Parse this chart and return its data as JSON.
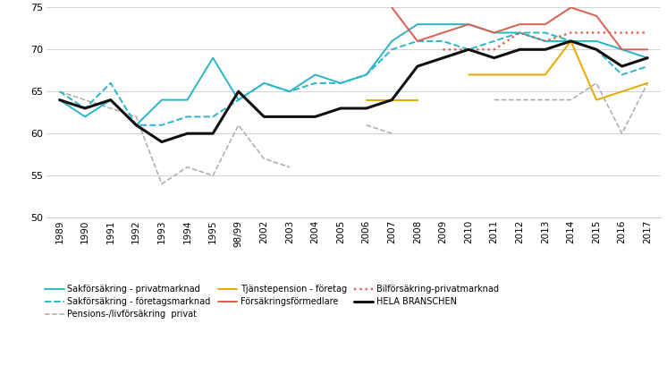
{
  "x_labels": [
    "1989",
    "1990",
    "1991",
    "1992",
    "1993",
    "1994",
    "1995",
    "98/99",
    "2002",
    "2003",
    "2004",
    "2005",
    "2006",
    "2007",
    "2008",
    "2009",
    "2010",
    "2011",
    "2012",
    "2013",
    "2014",
    "2015",
    "2016",
    "2017"
  ],
  "sakfor_privat": [
    64,
    62,
    64,
    61,
    64,
    64,
    69,
    64,
    66,
    65,
    67,
    66,
    67,
    71,
    73,
    73,
    73,
    72,
    72,
    71,
    71,
    71,
    70,
    69
  ],
  "sakfor_foretag": [
    65,
    63,
    66,
    61,
    61,
    62,
    62,
    64,
    66,
    65,
    66,
    66,
    67,
    70,
    71,
    71,
    70,
    71,
    72,
    72,
    71,
    70,
    67,
    68
  ],
  "pensions_liv": [
    65,
    64,
    63,
    62,
    54,
    56,
    55,
    61,
    57,
    56,
    null,
    null,
    61,
    60,
    null,
    null,
    null,
    64,
    64,
    64,
    64,
    66,
    60,
    66
  ],
  "tjanstepension": [
    null,
    null,
    null,
    null,
    null,
    null,
    null,
    null,
    null,
    null,
    null,
    null,
    64,
    64,
    64,
    null,
    67,
    67,
    67,
    67,
    71,
    64,
    65,
    66
  ],
  "forsakringsformedlare": [
    null,
    null,
    null,
    null,
    null,
    null,
    null,
    null,
    null,
    null,
    null,
    null,
    null,
    75,
    71,
    72,
    73,
    72,
    73,
    73,
    75,
    74,
    70,
    70
  ],
  "bilforsakring": [
    null,
    null,
    null,
    null,
    null,
    null,
    null,
    null,
    null,
    null,
    null,
    null,
    null,
    null,
    null,
    70,
    70,
    70,
    72,
    71,
    72,
    72,
    72,
    72
  ],
  "hela_branschen": [
    64,
    63,
    64,
    61,
    59,
    60,
    60,
    65,
    62,
    62,
    62,
    63,
    63,
    64,
    68,
    69,
    70,
    69,
    70,
    70,
    71,
    70,
    68,
    69
  ],
  "color_sakfor_privat": "#2BB5C8",
  "color_sakfor_foretag": "#2BB5C8",
  "color_pensions": "#AAAAAA",
  "color_tjanste": "#E8A800",
  "color_forsakring": "#D95F52",
  "color_hela": "#111111",
  "ylim_min": 50,
  "ylim_max": 75,
  "yticks": [
    50,
    55,
    60,
    65,
    70,
    75
  ],
  "legend_row1": [
    "Sakförsäkring - privatmarknad",
    "Sakförsäkring - företagsmarknad",
    "Pensions-/livförsäkring  privat"
  ],
  "legend_row2": [
    "Tjänstepension - företag",
    "Försäkringsförmedlare",
    "Bilförsäkring-privatmarknad"
  ],
  "legend_row3": [
    "HELA BRANSCHEN"
  ]
}
